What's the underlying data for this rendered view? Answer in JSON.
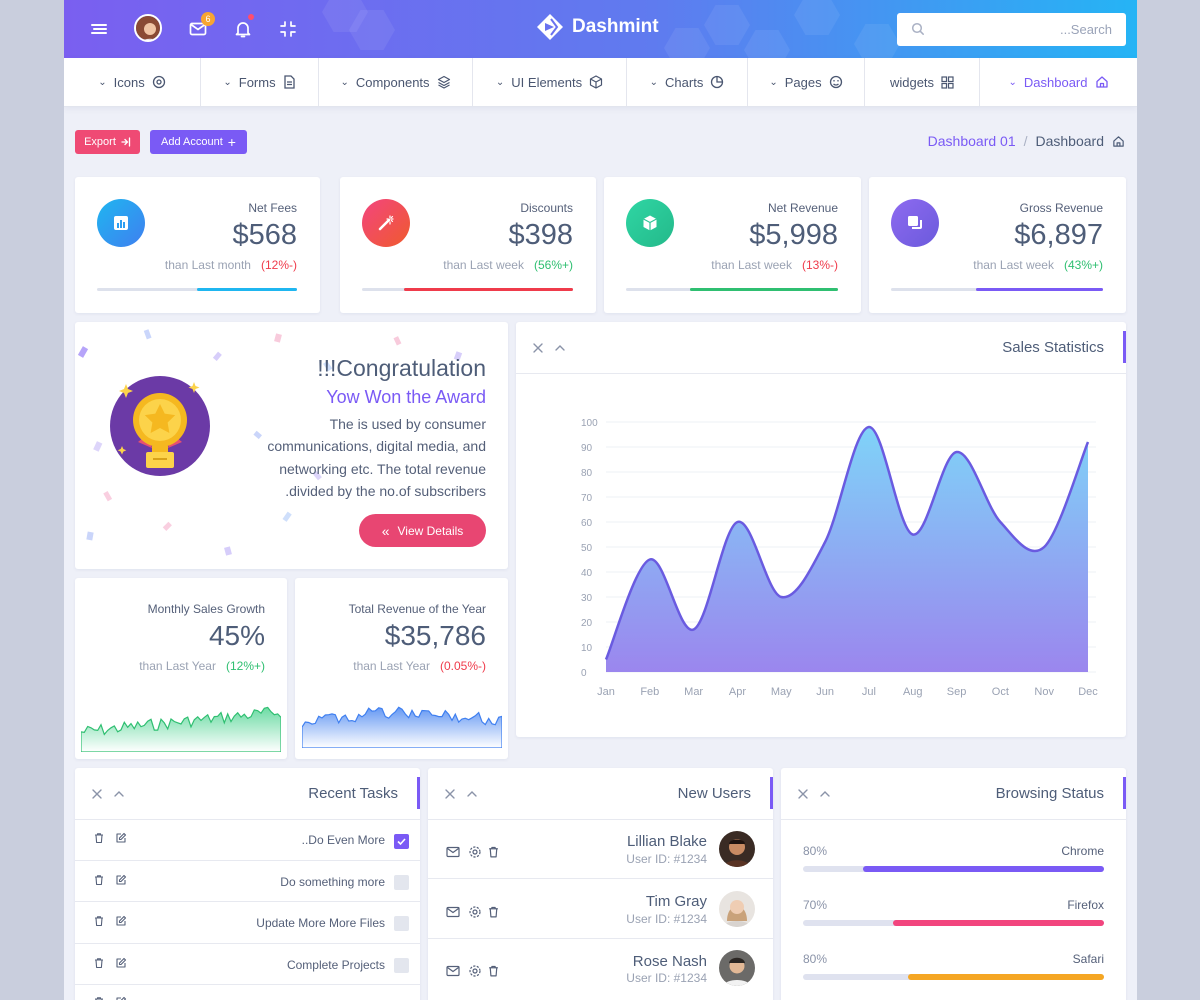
{
  "app": {
    "name": "Dashmint",
    "mail_count": "6"
  },
  "search": {
    "placeholder": "...Search"
  },
  "menu": [
    {
      "label": "Icons",
      "icon": "target-icon"
    },
    {
      "label": "Forms",
      "icon": "document-icon"
    },
    {
      "label": "Components",
      "icon": "layers-icon"
    },
    {
      "label": "UI Elements",
      "icon": "box-icon"
    },
    {
      "label": "Charts",
      "icon": "pie-icon"
    },
    {
      "label": "Pages",
      "icon": "smile-icon"
    },
    {
      "label": "widgets",
      "icon": "grid-icon"
    },
    {
      "label": "Dashboard",
      "icon": "home-icon"
    }
  ],
  "actions": {
    "export": "Export",
    "add_account": "Add Account"
  },
  "breadcrumb": {
    "first": "Dashboard 01",
    "sep": "/",
    "current": "Dashboard"
  },
  "stats": [
    {
      "label": "Net Fees",
      "value": "$568",
      "compare": "than Last month",
      "delta": "(12%-)",
      "trend": "down",
      "progress": 0.5,
      "color": "#1fb6f0"
    },
    {
      "label": "Discounts",
      "value": "$398",
      "compare": "than Last week",
      "delta": "(56%+)",
      "trend": "up",
      "progress": 0.8,
      "color": "#ef3b4b"
    },
    {
      "label": "Net Revenue",
      "value": "$5,998",
      "compare": "than Last week",
      "delta": "(13%-)",
      "trend": "down",
      "progress": 0.7,
      "color": "#2fbf71"
    },
    {
      "label": "Gross Revenue",
      "value": "$6,897",
      "compare": "than Last week",
      "delta": "(43%+)",
      "trend": "up",
      "progress": 0.6,
      "color": "#7a5af5"
    }
  ],
  "award": {
    "title": "!!!Congratulation",
    "subtitle": "Yow Won the Award",
    "lines": [
      "The is used by consumer",
      "communications, digital media, and",
      "networking etc. The total revenue",
      ".divided by the no.of subscribers"
    ],
    "button": "View Details"
  },
  "mini": [
    {
      "label": "Monthly Sales Growth",
      "value": "45%",
      "compare": "than Last Year",
      "delta": "(12%+)",
      "trend": "up"
    },
    {
      "label": "Total Revenue of the Year",
      "value": "$35,786",
      "compare": "than Last Year",
      "delta": "(0.05%-)",
      "trend": "down"
    }
  ],
  "sales": {
    "title": "Sales Statistics"
  },
  "chart_data": {
    "type": "area",
    "title": "Sales Statistics",
    "categories": [
      "Jan",
      "Feb",
      "Mar",
      "Apr",
      "May",
      "Jun",
      "Jul",
      "Aug",
      "Sep",
      "Oct",
      "Nov",
      "Dec"
    ],
    "values": [
      5,
      45,
      17,
      60,
      30,
      52,
      98,
      55,
      88,
      60,
      50,
      92
    ],
    "ylim": [
      0,
      100
    ],
    "yticks": [
      0,
      10,
      20,
      30,
      40,
      50,
      60,
      70,
      80,
      90,
      100
    ],
    "grid": true,
    "colors": {
      "top": "#7fd3f8",
      "bottom": "#9b86ee",
      "line": "#6a5be0"
    }
  },
  "tasks": {
    "title": "Recent Tasks",
    "items": [
      {
        "label": "..Do Even More",
        "done": true
      },
      {
        "label": "Do something more",
        "done": false
      },
      {
        "label": "Update More More Files",
        "done": false
      },
      {
        "label": "Complete Projects",
        "done": false
      }
    ]
  },
  "users": {
    "title": "New Users",
    "items": [
      {
        "name": "Lillian Blake",
        "id": "User ID: #1234"
      },
      {
        "name": "Tim Gray",
        "id": "User ID: #1234"
      },
      {
        "name": "Rose Nash",
        "id": "User ID: #1234"
      }
    ]
  },
  "browsing": {
    "title": "Browsing Status",
    "items": [
      {
        "name": "Chrome",
        "percent": "80%",
        "color": "#7a5af5"
      },
      {
        "name": "Firefox",
        "percent": "70%",
        "color": "#f2457e"
      },
      {
        "name": "Safari",
        "percent": "80%",
        "color": "#f5a623"
      }
    ]
  }
}
